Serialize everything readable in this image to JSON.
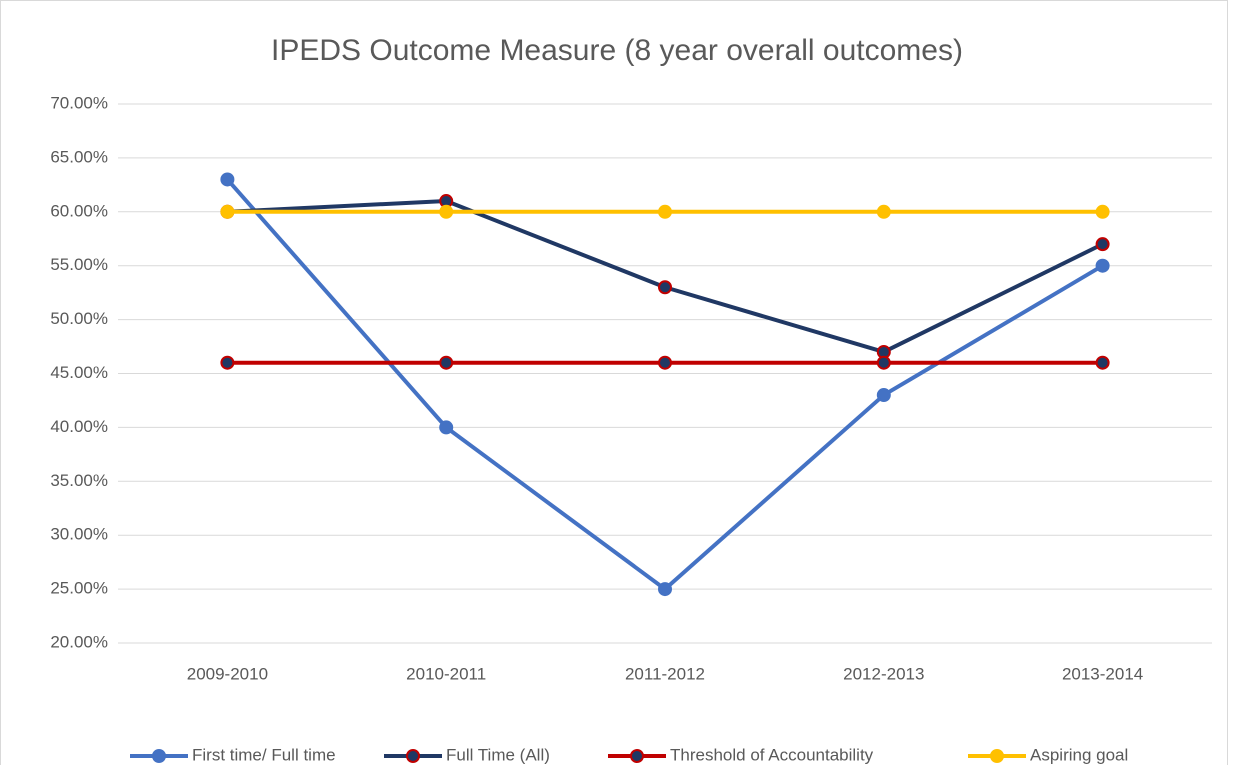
{
  "chart_data": {
    "type": "line",
    "title": "IPEDS Outcome Measure (8 year overall outcomes)",
    "categories": [
      "2009-2010",
      "2010-2011",
      "2011-2012",
      "2012-2013",
      "2013-2014"
    ],
    "series": [
      {
        "name": "First time/ Full time",
        "color": "#4472c4",
        "marker_fill": "#4472c4",
        "marker_edge": "#4472c4",
        "values": [
          63,
          40,
          25,
          43,
          55
        ]
      },
      {
        "name": "Full Time (All)",
        "color": "#203864",
        "marker_fill": "#203864",
        "marker_edge": "#c00000",
        "values": [
          60,
          61,
          53,
          47,
          57
        ]
      },
      {
        "name": "Threshold of Accountability",
        "color": "#c00000",
        "marker_fill": "#203864",
        "marker_edge": "#c00000",
        "values": [
          46,
          46,
          46,
          46,
          46
        ]
      },
      {
        "name": "Aspiring goal",
        "color": "#ffc000",
        "marker_fill": "#ffc000",
        "marker_edge": "#ffc000",
        "values": [
          60,
          60,
          60,
          60,
          60
        ]
      }
    ],
    "ylim": [
      20,
      70
    ],
    "yticks": [
      {
        "value": 20,
        "label": "20.00%"
      },
      {
        "value": 25,
        "label": "25.00%"
      },
      {
        "value": 30,
        "label": "30.00%"
      },
      {
        "value": 35,
        "label": "35.00%"
      },
      {
        "value": 40,
        "label": "40.00%"
      },
      {
        "value": 45,
        "label": "45.00%"
      },
      {
        "value": 50,
        "label": "50.00%"
      },
      {
        "value": 55,
        "label": "55.00%"
      },
      {
        "value": 60,
        "label": "60.00%"
      },
      {
        "value": 65,
        "label": "65.00%"
      },
      {
        "value": 70,
        "label": "70.00%"
      }
    ],
    "grid": true,
    "legend": "bottom"
  }
}
